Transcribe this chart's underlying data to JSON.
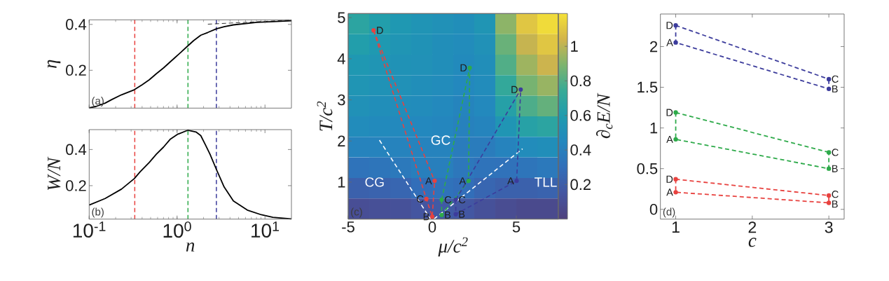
{
  "chart_data": [
    {
      "type": "line",
      "ylabel": "η",
      "xlim": [
        0.1,
        20
      ],
      "ylim": [
        0.035,
        0.42
      ],
      "log": "x",
      "xticks": [
        {
          "value": 0.1,
          "label": null
        },
        {
          "value": 1,
          "label": null
        },
        {
          "value": 10,
          "label": null
        }
      ],
      "yticks": [
        0.2,
        0.4
      ],
      "tick_labels": "y",
      "series": [
        {
          "color": "#000000",
          "x": [
            0.1,
            0.119,
            0.152,
            0.182,
            0.233,
            0.326,
            0.4,
            0.484,
            0.58,
            0.7,
            0.95,
            1.11,
            1.33,
            1.55,
            1.86,
            2.24,
            2.8,
            3.43,
            4.37,
            8.1,
            12.3,
            20
          ],
          "values": [
            0.036,
            0.042,
            0.057,
            0.073,
            0.093,
            0.115,
            0.137,
            0.159,
            0.185,
            0.21,
            0.256,
            0.279,
            0.307,
            0.33,
            0.353,
            0.365,
            0.381,
            0.39,
            0.398,
            0.409,
            0.412,
            0.416
          ]
        },
        {
          "color": "#000000",
          "line_style": "dashed",
          "x": [
            2.24,
            20
          ],
          "values": [
            0.401,
            0.419
          ]
        }
      ],
      "ref_lines": [
        {
          "axis": "x",
          "value": 0.33,
          "color": "#e8423f",
          "line_style": "dashed"
        },
        {
          "axis": "x",
          "value": 1.33,
          "color": "#2eaa4a",
          "line_style": "dashed"
        },
        {
          "axis": "x",
          "value": 2.8,
          "color": "#3c3c9c",
          "line_style": "dashed"
        }
      ],
      "annotations": [
        "(a)"
      ]
    },
    {
      "type": "line",
      "xlabel": "n",
      "ylabel": "W/N",
      "xlim": [
        0.1,
        20
      ],
      "ylim": [
        0.015,
        0.51
      ],
      "log": "x",
      "xticks": [
        {
          "value": 0.1,
          "label": "10$^{-1}$"
        },
        {
          "value": 1,
          "label": "10$^{0}$"
        },
        {
          "value": 10,
          "label": "10$^{1}$"
        }
      ],
      "yticks": [
        0.2,
        0.4
      ],
      "series": [
        {
          "color": "#000000",
          "x": [
            0.1,
            0.152,
            0.233,
            0.326,
            0.38,
            0.484,
            0.58,
            0.7,
            0.84,
            1.01,
            1.33,
            1.64,
            1.86,
            2.1,
            2.37,
            2.8,
            3.43,
            4.37,
            6.3,
            9.1,
            12.3,
            20
          ],
          "values": [
            0.093,
            0.129,
            0.181,
            0.239,
            0.277,
            0.329,
            0.374,
            0.413,
            0.458,
            0.484,
            0.507,
            0.497,
            0.477,
            0.426,
            0.374,
            0.29,
            0.193,
            0.116,
            0.065,
            0.039,
            0.025,
            0.016
          ]
        }
      ],
      "ref_lines": [
        {
          "axis": "x",
          "value": 0.33,
          "color": "#e8423f",
          "line_style": "dashed"
        },
        {
          "axis": "x",
          "value": 1.33,
          "color": "#2eaa4a",
          "line_style": "dashed"
        },
        {
          "axis": "x",
          "value": 2.8,
          "color": "#3c3c9c",
          "line_style": "dashed"
        }
      ],
      "annotations": [
        "(b)"
      ]
    },
    {
      "type": "heatmap",
      "clabel": "∂$_{c}$E/N",
      "clim": [
        0,
        1.19
      ],
      "cticks": [
        0.2,
        0.4,
        0.6,
        0.8,
        1
      ],
      "tick_labels": false,
      "categories": [
        null,
        null,
        null,
        null,
        null,
        null,
        null,
        null,
        null,
        null
      ],
      "y_categories": [
        null,
        null,
        null,
        null,
        null,
        null,
        null,
        null,
        null,
        null
      ],
      "cells": [
        [
          0.68,
          0.62,
          0.57,
          0.54,
          0.52,
          0.5,
          0.55,
          0.92,
          1.1,
          1.17
        ],
        [
          0.62,
          0.58,
          0.55,
          0.53,
          0.5,
          0.48,
          0.52,
          0.85,
          1.02,
          1.1
        ],
        [
          0.57,
          0.55,
          0.53,
          0.52,
          0.5,
          0.47,
          0.5,
          0.8,
          0.95,
          1.03
        ],
        [
          0.55,
          0.53,
          0.52,
          0.5,
          0.48,
          0.45,
          0.48,
          0.72,
          0.88,
          0.94
        ],
        [
          0.52,
          0.5,
          0.49,
          0.48,
          0.46,
          0.43,
          0.46,
          0.64,
          0.79,
          0.84
        ],
        [
          0.48,
          0.47,
          0.46,
          0.45,
          0.44,
          0.41,
          0.43,
          0.55,
          0.65,
          0.68
        ],
        [
          0.42,
          0.42,
          0.42,
          0.42,
          0.42,
          0.38,
          0.38,
          0.42,
          0.48,
          0.5
        ],
        [
          0.33,
          0.34,
          0.36,
          0.4,
          0.4,
          0.35,
          0.33,
          0.32,
          0.34,
          0.36
        ],
        [
          0.22,
          0.23,
          0.25,
          0.3,
          0.32,
          0.3,
          0.25,
          0.22,
          0.22,
          0.23
        ],
        [
          0.1,
          0.11,
          0.12,
          0.15,
          0.18,
          0.16,
          0.12,
          0.09,
          0.07,
          0.07
        ]
      ]
    },
    {
      "type": "line",
      "xlabel": "μ/c$^{2}$",
      "ylabel": "T/c$^{2}$",
      "xlim": [
        -5,
        7.5
      ],
      "ylim": [
        0.1,
        5.1
      ],
      "xticks": [
        -5,
        0,
        5
      ],
      "yticks": [
        1,
        2,
        3,
        4,
        5
      ],
      "marker": "circle",
      "line_style": "dashed",
      "series": [
        {
          "color": "#ffffff",
          "marker": "none",
          "x": [
            -3.14,
            -0.1
          ],
          "values": [
            2.02,
            0.1
          ]
        },
        {
          "color": "#ffffff",
          "marker": "none",
          "x": [
            0.1,
            5.37
          ],
          "values": [
            0.1,
            1.81
          ]
        },
        {
          "color": "#e8423f",
          "x": [
            -3.49,
            -0.35,
            0,
            0.14
          ],
          "values": [
            4.69,
            0.59,
            0.16,
            1.03
          ]
        },
        {
          "color": "#e8423f",
          "marker": "none",
          "x": [
            -3.49,
            0.14
          ],
          "values": [
            4.69,
            1.03
          ]
        },
        {
          "color": "#2eaa4a",
          "x": [
            0.56,
            0.56,
            2.16,
            2.23
          ],
          "values": [
            0.57,
            0.2,
            1.03,
            3.78
          ]
        },
        {
          "color": "#2eaa4a",
          "marker": "none",
          "x": [
            0.56,
            2.23
          ],
          "values": [
            0.57,
            3.78
          ]
        },
        {
          "color": "#3c3c9c",
          "x": [
            1.4,
            1.4,
            5.02,
            5.26
          ],
          "values": [
            0.57,
            0.22,
            1.03,
            3.25
          ]
        },
        {
          "color": "#3c3c9c",
          "marker": "none",
          "x": [
            1.4,
            5.26
          ],
          "values": [
            0.57,
            3.25
          ]
        }
      ],
      "annotations": [
        "(c)",
        "CG",
        "GC",
        "TLL",
        {
          "text": "D",
          "x": -3.49,
          "y": 4.69
        },
        {
          "text": "A",
          "x": 0.14,
          "y": 1.03
        },
        {
          "text": "C",
          "x": -0.35,
          "y": 0.59
        },
        {
          "text": "B",
          "x": 0,
          "y": 0.16
        },
        {
          "text": "D",
          "x": 2.23,
          "y": 3.78
        },
        {
          "text": "A",
          "x": 2.16,
          "y": 1.03
        },
        {
          "text": "C",
          "x": 0.56,
          "y": 0.57
        },
        {
          "text": "B",
          "x": 0.56,
          "y": 0.2
        },
        {
          "text": "D",
          "x": 5.26,
          "y": 3.25
        },
        {
          "text": "A",
          "x": 5.02,
          "y": 1.03
        },
        {
          "text": "C",
          "x": 1.4,
          "y": 0.57
        },
        {
          "text": "B",
          "x": 1.4,
          "y": 0.22
        }
      ]
    },
    {
      "type": "line",
      "xlabel": "c",
      "xlim": [
        0.8,
        3.2
      ],
      "ylim": [
        -0.12,
        2.4
      ],
      "xticks": [
        1,
        2,
        3
      ],
      "yticks": [
        0,
        0.5,
        1,
        1.5,
        2
      ],
      "marker": "circle",
      "line_style": "dashed",
      "series": [
        {
          "color": "#3c3c9c",
          "x": [
            1,
            1,
            3,
            3
          ],
          "values": [
            2.26,
            2.05,
            1.48,
            1.6
          ]
        },
        {
          "color": "#3c3c9c",
          "marker": "none",
          "x": [
            1,
            3
          ],
          "values": [
            2.26,
            1.6
          ]
        },
        {
          "color": "#2eaa4a",
          "x": [
            1,
            1,
            3,
            3
          ],
          "values": [
            1.19,
            0.86,
            0.5,
            0.7
          ]
        },
        {
          "color": "#2eaa4a",
          "marker": "none",
          "x": [
            1,
            3
          ],
          "values": [
            1.19,
            0.7
          ]
        },
        {
          "color": "#e8423f",
          "x": [
            1,
            1,
            3,
            3
          ],
          "values": [
            0.37,
            0.21,
            0.08,
            0.17
          ]
        },
        {
          "color": "#e8423f",
          "marker": "none",
          "x": [
            1,
            3
          ],
          "values": [
            0.37,
            0.17
          ]
        }
      ],
      "annotations": [
        "(d)",
        {
          "text": "D",
          "x": 1,
          "y": 2.26
        },
        {
          "text": "A",
          "x": 1,
          "y": 2.05
        },
        {
          "text": "C",
          "x": 3,
          "y": 1.6
        },
        {
          "text": "B",
          "x": 3,
          "y": 1.48
        },
        {
          "text": "D",
          "x": 1,
          "y": 1.19
        },
        {
          "text": "A",
          "x": 1,
          "y": 0.86
        },
        {
          "text": "C",
          "x": 3,
          "y": 0.7
        },
        {
          "text": "B",
          "x": 3,
          "y": 0.5
        },
        {
          "text": "D",
          "x": 1,
          "y": 0.37
        },
        {
          "text": "A",
          "x": 1,
          "y": 0.21
        },
        {
          "text": "C",
          "x": 3,
          "y": 0.17
        },
        {
          "text": "B",
          "x": 3,
          "y": 0.08
        }
      ]
    }
  ]
}
